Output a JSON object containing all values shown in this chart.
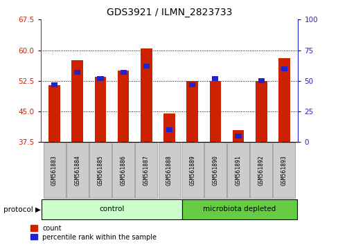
{
  "title": "GDS3921 / ILMN_2823733",
  "samples": [
    "GSM561883",
    "GSM561884",
    "GSM561885",
    "GSM561886",
    "GSM561887",
    "GSM561888",
    "GSM561889",
    "GSM561890",
    "GSM561891",
    "GSM561892",
    "GSM561893"
  ],
  "count_values": [
    51.5,
    57.5,
    53.5,
    55.0,
    60.5,
    44.5,
    52.5,
    52.5,
    40.5,
    52.5,
    58.0
  ],
  "percentile_values": [
    47,
    57,
    52,
    57,
    62,
    10,
    47,
    52,
    5,
    50,
    60
  ],
  "groups": [
    "control",
    "control",
    "control",
    "control",
    "control",
    "control",
    "microbiota depleted",
    "microbiota depleted",
    "microbiota depleted",
    "microbiota depleted",
    "microbiota depleted"
  ],
  "control_count": 6,
  "ylim_left": [
    37.5,
    67.5
  ],
  "ylim_right": [
    0,
    100
  ],
  "yticks_left": [
    37.5,
    45.0,
    52.5,
    60.0,
    67.5
  ],
  "yticks_right": [
    0,
    25,
    50,
    75,
    100
  ],
  "bar_color": "#cc2200",
  "percentile_color": "#2222cc",
  "control_color": "#ccffcc",
  "microbiota_color": "#66cc44",
  "sample_box_color": "#cccccc",
  "plot_bg": "#ffffff",
  "bar_width": 0.5,
  "baseline": 37.5,
  "grid_ticks": [
    45.0,
    52.5,
    60.0
  ],
  "title_fontsize": 10,
  "tick_fontsize": 7.5,
  "label_fontsize": 7.5
}
